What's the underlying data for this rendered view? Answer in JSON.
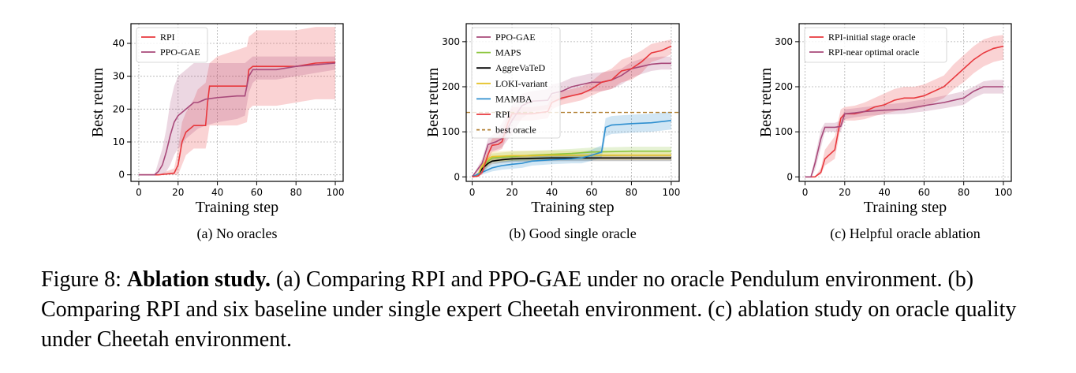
{
  "figure": {
    "caption_label": "Figure 8:",
    "caption_bold": "Ablation study.",
    "caption_text": " (a) Comparing RPI and PPO-GAE under no oracle Pendulum environment. (b) Comparing RPI and six baseline under single expert Cheetah environment. (c) ablation study on oracle quality under Cheetah environment."
  },
  "colors": {
    "RPI": "#e8383d",
    "PPO-GAE": "#a8497a",
    "MAPS": "#8cc63e",
    "AggreVaTeD": "#000000",
    "LOKI-variant": "#e6c229",
    "MAMBA": "#2f8fcf",
    "best oracle": "#b07d2e",
    "RPI-initial stage oracle": "#e8383d",
    "RPI-near optimal oracle": "#a8497a"
  },
  "chart_data": [
    {
      "type": "line",
      "subtitle": "(a) No oracles",
      "xlabel": "Training step",
      "ylabel": "Best return",
      "xlim": [
        -4,
        104
      ],
      "ylim": [
        -2,
        46
      ],
      "xticks": [
        0,
        20,
        40,
        60,
        80,
        100
      ],
      "yticks": [
        0,
        10,
        20,
        30,
        40
      ],
      "grid": true,
      "legend": "top-left",
      "series": [
        {
          "name": "RPI",
          "x": [
            0,
            10,
            18,
            20,
            22,
            24,
            26,
            28,
            30,
            34,
            35,
            36,
            40,
            45,
            50,
            55,
            56,
            58,
            60,
            70,
            80,
            90,
            100
          ],
          "y": [
            0,
            0,
            0.5,
            3,
            10,
            13,
            14,
            15,
            15,
            15,
            22,
            27,
            27,
            27,
            27,
            27,
            32,
            33,
            33,
            33,
            33,
            34,
            34.3
          ],
          "upper": [
            0,
            0,
            2,
            8,
            16,
            19,
            21,
            23,
            26,
            28,
            31,
            34,
            36,
            37,
            38,
            39,
            42,
            43,
            44,
            44,
            44,
            45,
            45
          ],
          "lower": [
            0,
            0,
            0,
            0,
            3,
            6,
            7,
            8,
            8,
            8,
            11,
            15,
            15,
            15,
            15,
            16,
            20,
            21,
            21,
            21,
            22,
            23,
            23
          ]
        },
        {
          "name": "PPO-GAE",
          "x": [
            0,
            8,
            10,
            12,
            14,
            16,
            18,
            20,
            22,
            24,
            26,
            28,
            30,
            34,
            40,
            50,
            54,
            56,
            58,
            60,
            70,
            80,
            90,
            100
          ],
          "y": [
            0,
            0,
            1,
            3,
            7,
            12,
            16,
            18,
            19,
            20,
            21,
            22,
            22,
            23,
            23.5,
            24,
            24,
            30,
            32,
            32,
            32,
            33,
            33.5,
            34
          ],
          "upper": [
            0,
            0,
            4,
            8,
            14,
            22,
            27,
            30,
            31,
            32,
            33,
            34,
            34,
            34,
            34,
            34,
            34,
            35,
            36,
            36,
            36,
            36,
            36,
            36
          ],
          "lower": [
            0,
            0,
            0,
            0,
            1,
            3,
            6,
            8,
            9,
            11,
            12,
            13,
            14,
            15,
            16,
            17,
            18,
            25,
            28,
            29,
            29,
            30,
            31,
            32
          ]
        }
      ]
    },
    {
      "type": "line",
      "subtitle": "(b) Good single oracle",
      "xlabel": "Training step",
      "ylabel": "Best return",
      "xlim": [
        -3,
        104
      ],
      "ylim": [
        -10,
        340
      ],
      "xticks": [
        0,
        20,
        40,
        60,
        80,
        100
      ],
      "yticks": [
        0,
        100,
        200,
        300
      ],
      "grid": true,
      "legend": "top-left",
      "baseline": {
        "name": "best oracle",
        "y": 143
      },
      "series": [
        {
          "name": "PPO-GAE",
          "x": [
            0,
            5,
            8,
            12,
            15,
            20,
            25,
            30,
            38,
            40,
            45,
            50,
            55,
            60,
            65,
            70,
            75,
            80,
            85,
            90,
            95,
            100
          ],
          "y": [
            0,
            30,
            72,
            78,
            85,
            125,
            158,
            168,
            170,
            185,
            190,
            200,
            205,
            210,
            210,
            215,
            225,
            240,
            245,
            250,
            252,
            252
          ],
          "upper": [
            0,
            40,
            85,
            100,
            120,
            160,
            185,
            190,
            195,
            205,
            210,
            220,
            225,
            230,
            232,
            235,
            240,
            255,
            262,
            265,
            267,
            267
          ],
          "lower": [
            0,
            20,
            55,
            60,
            65,
            95,
            130,
            145,
            150,
            165,
            170,
            180,
            185,
            190,
            190,
            195,
            205,
            220,
            228,
            235,
            238,
            238
          ]
        },
        {
          "name": "MAPS",
          "x": [
            0,
            3,
            5,
            8,
            10,
            15,
            20,
            30,
            40,
            50,
            60,
            70,
            80,
            90,
            100
          ],
          "y": [
            0,
            5,
            20,
            35,
            42,
            44,
            45,
            48,
            50,
            52,
            55,
            56,
            57,
            57,
            57
          ],
          "upper": [
            0,
            10,
            30,
            45,
            52,
            54,
            56,
            58,
            60,
            62,
            65,
            66,
            67,
            67,
            67
          ],
          "lower": [
            0,
            0,
            10,
            25,
            32,
            34,
            35,
            38,
            40,
            42,
            45,
            46,
            47,
            47,
            47
          ]
        },
        {
          "name": "AggreVaTeD",
          "x": [
            0,
            3,
            5,
            8,
            10,
            15,
            20,
            30,
            40,
            50,
            60,
            70,
            80,
            90,
            100
          ],
          "y": [
            0,
            5,
            18,
            30,
            35,
            38,
            40,
            41,
            42,
            42,
            42,
            42,
            42,
            42,
            42
          ],
          "upper": [
            0,
            10,
            25,
            38,
            42,
            45,
            47,
            48,
            49,
            49,
            49,
            49,
            49,
            49,
            49
          ],
          "lower": [
            0,
            0,
            10,
            22,
            28,
            31,
            33,
            34,
            35,
            35,
            35,
            35,
            35,
            35,
            35
          ]
        },
        {
          "name": "LOKI-variant",
          "x": [
            0,
            3,
            5,
            8,
            10,
            15,
            20,
            30,
            40,
            50,
            60,
            70,
            80,
            90,
            100
          ],
          "y": [
            0,
            5,
            25,
            40,
            45,
            46,
            47,
            47,
            48,
            48,
            48,
            48,
            48,
            48,
            48
          ],
          "upper": [
            0,
            10,
            35,
            52,
            56,
            57,
            58,
            58,
            58,
            58,
            58,
            58,
            58,
            58,
            58
          ],
          "lower": [
            0,
            0,
            15,
            28,
            34,
            35,
            36,
            36,
            38,
            38,
            38,
            38,
            38,
            38,
            38
          ]
        },
        {
          "name": "MAMBA",
          "x": [
            0,
            5,
            10,
            15,
            20,
            25,
            30,
            40,
            50,
            55,
            60,
            65,
            67,
            70,
            80,
            90,
            100
          ],
          "y": [
            0,
            10,
            20,
            25,
            28,
            30,
            35,
            38,
            40,
            42,
            48,
            55,
            110,
            115,
            118,
            120,
            125
          ],
          "upper": [
            0,
            15,
            28,
            34,
            38,
            40,
            45,
            48,
            52,
            55,
            60,
            70,
            130,
            135,
            138,
            140,
            145
          ],
          "lower": [
            0,
            5,
            12,
            16,
            18,
            20,
            25,
            28,
            30,
            30,
            36,
            42,
            90,
            95,
            98,
            100,
            105
          ]
        },
        {
          "name": "RPI",
          "x": [
            0,
            3,
            5,
            8,
            10,
            13,
            15,
            18,
            20,
            25,
            30,
            38,
            40,
            45,
            50,
            55,
            60,
            65,
            70,
            75,
            80,
            85,
            90,
            95,
            100
          ],
          "y": [
            0,
            2,
            10,
            50,
            70,
            72,
            78,
            120,
            140,
            140,
            140,
            145,
            165,
            175,
            180,
            185,
            195,
            210,
            215,
            235,
            240,
            255,
            275,
            280,
            290
          ],
          "upper": [
            0,
            5,
            20,
            65,
            85,
            90,
            100,
            140,
            155,
            155,
            155,
            160,
            180,
            190,
            195,
            200,
            212,
            230,
            240,
            260,
            268,
            280,
            295,
            300,
            305
          ],
          "lower": [
            0,
            0,
            5,
            35,
            55,
            58,
            62,
            100,
            125,
            125,
            125,
            130,
            150,
            160,
            165,
            170,
            180,
            190,
            195,
            210,
            215,
            230,
            255,
            262,
            272
          ]
        }
      ]
    },
    {
      "type": "line",
      "subtitle": "(c) Helpful oracle ablation",
      "xlabel": "Training step",
      "ylabel": "Best return",
      "xlim": [
        -3,
        104
      ],
      "ylim": [
        -10,
        340
      ],
      "xticks": [
        0,
        20,
        40,
        60,
        80,
        100
      ],
      "yticks": [
        0,
        100,
        200,
        300
      ],
      "grid": true,
      "legend": "top-left",
      "series": [
        {
          "name": "RPI-initial stage oracle",
          "x": [
            0,
            5,
            8,
            10,
            15,
            18,
            20,
            25,
            30,
            35,
            40,
            45,
            50,
            55,
            60,
            65,
            70,
            75,
            80,
            85,
            90,
            95,
            100
          ],
          "y": [
            0,
            0,
            10,
            40,
            60,
            130,
            140,
            140,
            145,
            155,
            160,
            170,
            175,
            175,
            180,
            190,
            200,
            220,
            240,
            260,
            275,
            285,
            290
          ],
          "upper": [
            0,
            0,
            20,
            60,
            90,
            150,
            155,
            158,
            165,
            175,
            185,
            195,
            200,
            200,
            205,
            215,
            225,
            250,
            270,
            290,
            305,
            312,
            315
          ],
          "lower": [
            0,
            0,
            5,
            25,
            40,
            110,
            125,
            125,
            128,
            135,
            140,
            145,
            150,
            150,
            155,
            165,
            175,
            195,
            210,
            230,
            245,
            255,
            260
          ]
        },
        {
          "name": "RPI-near optimal oracle",
          "x": [
            0,
            3,
            5,
            8,
            10,
            15,
            18,
            20,
            25,
            30,
            40,
            50,
            60,
            70,
            80,
            85,
            90,
            95,
            100
          ],
          "y": [
            0,
            0,
            30,
            85,
            110,
            110,
            112,
            140,
            142,
            145,
            148,
            150,
            158,
            165,
            175,
            190,
            200,
            200,
            200
          ],
          "upper": [
            0,
            0,
            45,
            105,
            120,
            120,
            125,
            150,
            152,
            155,
            160,
            165,
            172,
            180,
            190,
            200,
            212,
            215,
            215
          ],
          "lower": [
            0,
            0,
            15,
            65,
            100,
            100,
            100,
            128,
            132,
            135,
            138,
            140,
            145,
            152,
            160,
            175,
            185,
            185,
            185
          ]
        }
      ]
    }
  ]
}
